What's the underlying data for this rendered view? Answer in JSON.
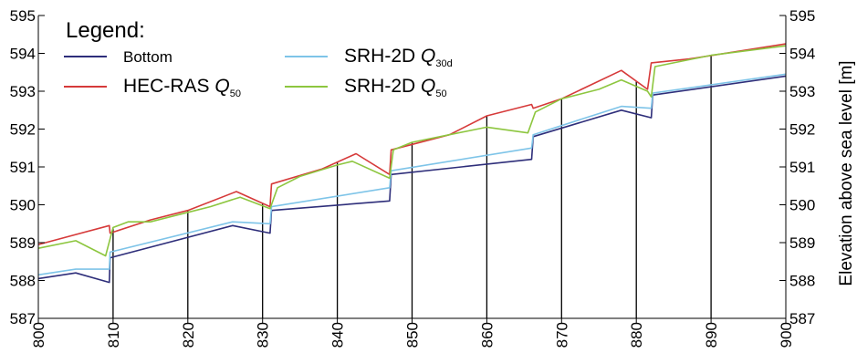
{
  "chart_data": {
    "type": "line",
    "xlim": [
      800,
      900
    ],
    "ylim": [
      587,
      595
    ],
    "x_ticks": [
      "800",
      "810",
      "820",
      "830",
      "840",
      "850",
      "860",
      "870",
      "880",
      "890",
      "900"
    ],
    "y_ticks": [
      "587",
      "588",
      "589",
      "590",
      "591",
      "592",
      "593",
      "594",
      "595"
    ],
    "y_ticks_right": [
      "587",
      "588",
      "589",
      "590",
      "591",
      "592",
      "593",
      "594",
      "595"
    ],
    "ylabel_right": "Elevation above sea level [m]",
    "legend": {
      "title": "Legend:",
      "placement": "top-left",
      "entries": [
        {
          "label": "Bottom",
          "color": "#2e2e7a"
        },
        {
          "label": "SRH-2D Q",
          "sub": "30d",
          "color": "#7ec4e8"
        },
        {
          "label": "HEC-RAS Q",
          "sub": "50",
          "color": "#d63a3a"
        },
        {
          "label": "SRH-2D Q",
          "sub": "50",
          "color": "#8dc63f"
        }
      ]
    },
    "cross_sections": [
      810,
      820,
      830,
      840,
      850,
      860,
      870,
      880,
      890
    ],
    "series": [
      {
        "name": "Bottom",
        "color": "#2e2e7a",
        "x": [
          800,
          805,
          809.5,
          809.6,
          826,
          831,
          831.2,
          847,
          847.2,
          866,
          866.2,
          878,
          882,
          882.2,
          900
        ],
        "y": [
          588.05,
          588.2,
          587.95,
          588.6,
          589.45,
          589.25,
          589.85,
          590.1,
          590.8,
          591.2,
          591.8,
          592.5,
          592.3,
          592.9,
          593.4
        ]
      },
      {
        "name": "SRH-2D Q30d",
        "color": "#7ec4e8",
        "x": [
          800,
          805,
          809.5,
          809.6,
          826,
          831,
          831.2,
          847,
          847.2,
          866,
          866.2,
          878,
          882,
          882.2,
          900
        ],
        "y": [
          588.15,
          588.3,
          588.3,
          588.75,
          589.55,
          589.5,
          589.95,
          590.45,
          590.9,
          591.5,
          591.85,
          592.6,
          592.55,
          592.95,
          593.45
        ]
      },
      {
        "name": "HEC-RAS Q50",
        "color": "#d63a3a",
        "x": [
          800,
          809.5,
          809.6,
          815,
          820,
          826.5,
          831,
          831.2,
          838,
          842.5,
          847,
          847.2,
          855,
          860,
          866,
          866.2,
          870,
          878,
          881.5,
          882,
          887,
          900
        ],
        "y": [
          588.95,
          589.45,
          589.25,
          589.6,
          589.85,
          590.35,
          589.95,
          590.55,
          590.95,
          591.35,
          590.8,
          591.45,
          591.85,
          592.35,
          592.65,
          592.55,
          592.8,
          593.55,
          593.05,
          593.75,
          593.85,
          594.25
        ]
      },
      {
        "name": "SRH-2D Q50",
        "color": "#8dc63f",
        "x": [
          800,
          805,
          809,
          810,
          812,
          815,
          820,
          823,
          827,
          831,
          832,
          835,
          840,
          842,
          847,
          847.5,
          850,
          855,
          860,
          865.5,
          866.5,
          870,
          875,
          878,
          881.5,
          882,
          882.5,
          885,
          890,
          900
        ],
        "y": [
          588.85,
          589.05,
          588.65,
          589.4,
          589.55,
          589.55,
          589.8,
          589.95,
          590.2,
          589.9,
          590.45,
          590.75,
          591.05,
          591.15,
          590.7,
          591.45,
          591.65,
          591.85,
          592.05,
          591.9,
          592.45,
          592.8,
          593.05,
          593.3,
          593.0,
          592.85,
          593.65,
          593.75,
          593.95,
          594.2
        ]
      }
    ]
  }
}
